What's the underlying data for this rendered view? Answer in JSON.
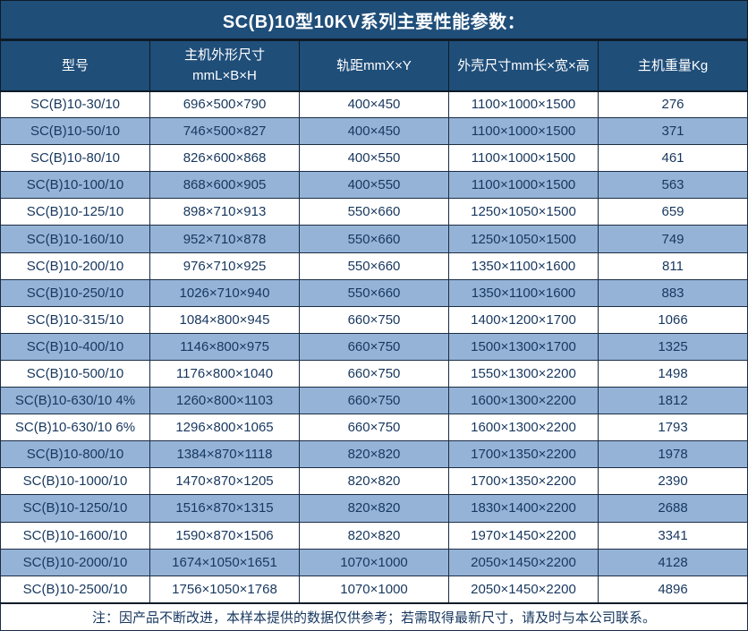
{
  "title": "SC(B)10型10KV系列主要性能参数：",
  "note": "注：因产品不断改进，本样本提供的数据仅供参考；若需取得最新尺寸，请及时与本公司联系。",
  "colors": {
    "header_bg": "#1F4E79",
    "row_alt_bg": "#95B3D7",
    "row_bg": "#FFFFFF",
    "border": "#1B2C44",
    "header_text": "#FFFFFF",
    "cell_text": "#17375E"
  },
  "table": {
    "columns": [
      {
        "line1": "型号",
        "line2": ""
      },
      {
        "line1": "主机外形尺寸",
        "line2": "mmL×B×H"
      },
      {
        "line1": "轨距mmX×Y",
        "line2": ""
      },
      {
        "line1": "外壳尺寸mm长×宽×高",
        "line2": ""
      },
      {
        "line1": "主机重量Kg",
        "line2": ""
      }
    ],
    "rows": [
      [
        "SC(B)10-30/10",
        "696×500×790",
        "400×450",
        "1100×1000×1500",
        "276"
      ],
      [
        "SC(B)10-50/10",
        "746×500×827",
        "400×450",
        "1100×1000×1500",
        "371"
      ],
      [
        "SC(B)10-80/10",
        "826×600×868",
        "400×550",
        "1100×1000×1500",
        "461"
      ],
      [
        "SC(B)10-100/10",
        "868×600×905",
        "400×550",
        "1100×1000×1500",
        "563"
      ],
      [
        "SC(B)10-125/10",
        "898×710×913",
        "550×660",
        "1250×1050×1500",
        "659"
      ],
      [
        "SC(B)10-160/10",
        "952×710×878",
        "550×660",
        "1250×1050×1500",
        "749"
      ],
      [
        "SC(B)10-200/10",
        "976×710×925",
        "550×660",
        "1350×1100×1600",
        "811"
      ],
      [
        "SC(B)10-250/10",
        "1026×710×940",
        "550×660",
        "1350×1100×1600",
        "883"
      ],
      [
        "SC(B)10-315/10",
        "1084×800×945",
        "660×750",
        "1400×1200×1700",
        "1066"
      ],
      [
        "SC(B)10-400/10",
        "1146×800×975",
        "660×750",
        "1500×1300×1700",
        "1325"
      ],
      [
        "SC(B)10-500/10",
        "1176×800×1040",
        "660×750",
        "1550×1300×2200",
        "1498"
      ],
      [
        "SC(B)10-630/10 4%",
        "1260×800×1103",
        "660×750",
        "1600×1300×2200",
        "1812"
      ],
      [
        "SC(B)10-630/10 6%",
        "1296×800×1065",
        "660×750",
        "1600×1300×2200",
        "1793"
      ],
      [
        "SC(B)10-800/10",
        "1384×870×1118",
        "820×820",
        "1700×1350×2200",
        "1978"
      ],
      [
        "SC(B)10-1000/10",
        "1470×870×1205",
        "820×820",
        "1700×1350×2200",
        "2390"
      ],
      [
        "SC(B)10-1250/10",
        "1516×870×1315",
        "820×820",
        "1830×1400×2200",
        "2688"
      ],
      [
        "SC(B)10-1600/10",
        "1590×870×1506",
        "820×820",
        "1970×1450×2200",
        "3341"
      ],
      [
        "SC(B)10-2000/10",
        "1674×1050×1651",
        "1070×1000",
        "2050×1450×2200",
        "4128"
      ],
      [
        "SC(B)10-2500/10",
        "1756×1050×1768",
        "1070×1000",
        "2050×1450×2200",
        "4896"
      ]
    ]
  }
}
